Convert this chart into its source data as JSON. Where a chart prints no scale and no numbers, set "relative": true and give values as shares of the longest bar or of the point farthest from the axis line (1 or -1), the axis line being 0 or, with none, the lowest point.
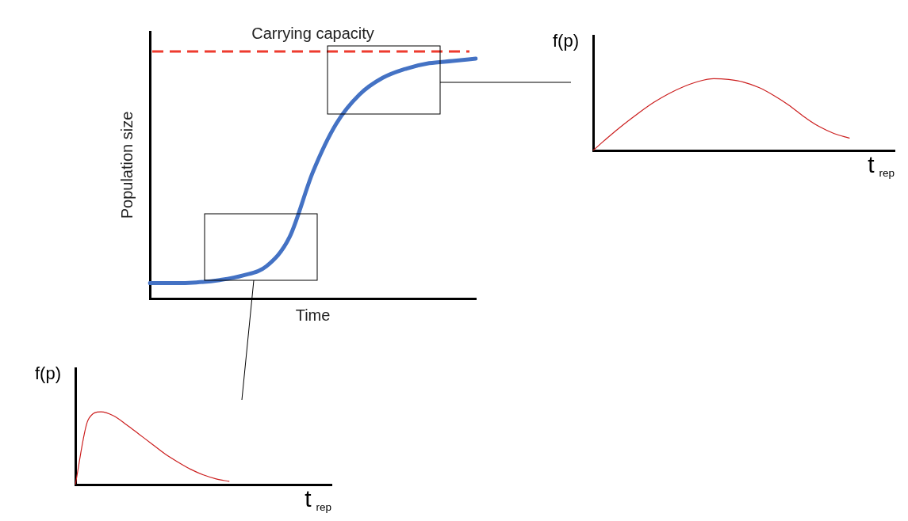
{
  "chart_data": [
    {
      "type": "line",
      "relative": true,
      "xlabel": "Time",
      "ylabel": "Population size",
      "legend": false,
      "grid": false,
      "marker": "none",
      "categories": [
        null,
        null,
        null,
        null,
        null,
        null,
        null,
        null,
        null,
        null,
        null,
        null,
        null,
        null,
        null
      ],
      "series": [
        {
          "color": "#4472c4",
          "values": [
            0.064,
            0.064,
            0.067,
            0.077,
            0.096,
            0.134,
            0.256,
            0.527,
            0.728,
            0.85,
            0.92,
            0.958,
            0.981,
            0.99,
            1
          ]
        }
      ],
      "ref_lines": [
        {
          "axis": "y",
          "value": 1.03,
          "label": "Carrying capacity",
          "color": "#ee3b2e",
          "line_style": "dashed"
        }
      ]
    },
    {
      "type": "line",
      "relative": true,
      "xlabel": "t$_{rep}$",
      "ylabel": "f(p)",
      "legend": false,
      "grid": false,
      "marker": "none",
      "categories": [
        null,
        null,
        null,
        null,
        null,
        null,
        null,
        null,
        null,
        null,
        null,
        null,
        null,
        null,
        null,
        null,
        null,
        null,
        null,
        null,
        null
      ],
      "series": [
        {
          "color": "#cc1f1f",
          "values": [
            0,
            0.185,
            0.358,
            0.519,
            0.667,
            0.79,
            0.889,
            0.963,
            1,
            0.988,
            0.951,
            0.877,
            0.765,
            0.63,
            0.469,
            0.333,
            0.235,
            0.173,
            null,
            null,
            null
          ]
        }
      ]
    },
    {
      "type": "line",
      "relative": true,
      "xlabel": "t$_{rep}$",
      "ylabel": "f(p)",
      "legend": false,
      "grid": false,
      "marker": "none",
      "categories": [
        null,
        null,
        null,
        null,
        null,
        null,
        null,
        null,
        null,
        null,
        null,
        null,
        null,
        null,
        null,
        null,
        null,
        null,
        null,
        null,
        null
      ],
      "series": [
        {
          "color": "#cc1f1f",
          "values": [
            0,
            0.889,
            1,
            0.944,
            0.822,
            0.689,
            0.556,
            0.422,
            0.311,
            0.211,
            0.133,
            0.078,
            0.044,
            null,
            null,
            null,
            null,
            null,
            null,
            null,
            null
          ]
        }
      ]
    }
  ]
}
